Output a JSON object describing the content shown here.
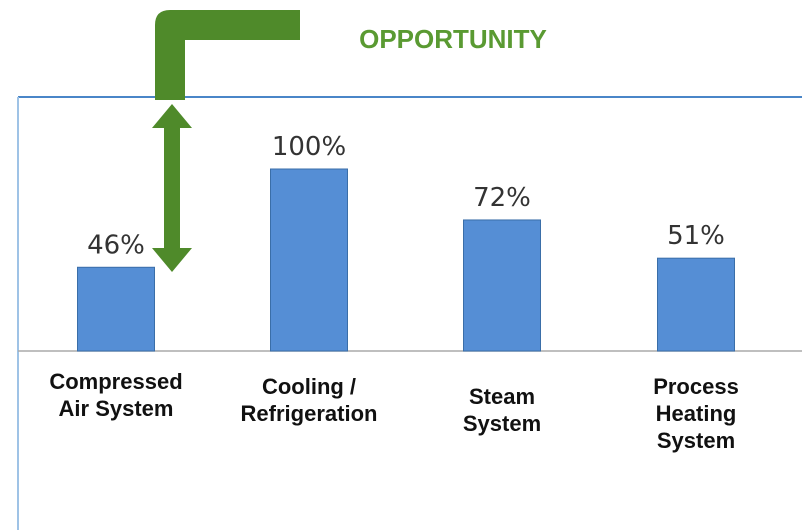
{
  "chart_data": {
    "type": "bar",
    "annotation": "OPPORTUNITY",
    "categories": [
      "Compressed\nAir System",
      "Cooling /\nRefrigeration",
      "Steam\nSystem",
      "Process\nHeating\nSystem"
    ],
    "values": [
      46,
      100,
      72,
      51
    ],
    "value_labels": [
      "46%",
      "100%",
      "72%",
      "51%"
    ],
    "color": "#558ed5"
  }
}
